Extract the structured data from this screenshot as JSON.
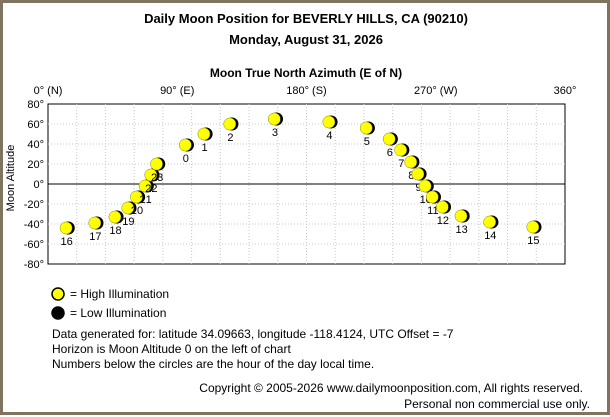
{
  "header": {
    "title": "Daily Moon Position for BEVERLY HILLS, CA (90210)",
    "date": "Monday, August 31, 2026"
  },
  "chart_data": {
    "type": "scatter",
    "title": "Daily Moon Position for BEVERLY HILLS, CA (90210)",
    "subtitle": "Monday, August 31, 2026",
    "xlabel": "Moon True North Azimuth (E of N)",
    "ylabel": "Moon Altitude",
    "xlim": [
      0,
      360
    ],
    "ylim": [
      -80,
      80
    ],
    "x_ticks": [
      {
        "value": 0,
        "label": "0° (N)"
      },
      {
        "value": 90,
        "label": "90° (E)"
      },
      {
        "value": 180,
        "label": "180° (S)"
      },
      {
        "value": 270,
        "label": "270° (W)"
      },
      {
        "value": 360,
        "label": "360°"
      }
    ],
    "y_ticks": [
      {
        "value": 80,
        "label": "80°"
      },
      {
        "value": 60,
        "label": "60°"
      },
      {
        "value": 40,
        "label": "40°"
      },
      {
        "value": 20,
        "label": "20°"
      },
      {
        "value": 0,
        "label": "0°"
      },
      {
        "value": -20,
        "label": "-20°"
      },
      {
        "value": -40,
        "label": "-40°"
      },
      {
        "value": -60,
        "label": "-60°"
      },
      {
        "value": -80,
        "label": "-80°"
      }
    ],
    "grid": true,
    "horizon_line": 0,
    "points": [
      {
        "hour": "0",
        "azimuth": 96,
        "altitude": 39
      },
      {
        "hour": "1",
        "azimuth": 109,
        "altitude": 50
      },
      {
        "hour": "2",
        "azimuth": 127,
        "altitude": 60
      },
      {
        "hour": "3",
        "azimuth": 158,
        "altitude": 65
      },
      {
        "hour": "4",
        "azimuth": 196,
        "altitude": 62
      },
      {
        "hour": "5",
        "azimuth": 222,
        "altitude": 56
      },
      {
        "hour": "6",
        "azimuth": 238,
        "altitude": 45
      },
      {
        "hour": "7",
        "azimuth": 246,
        "altitude": 34
      },
      {
        "hour": "8",
        "azimuth": 253,
        "altitude": 22
      },
      {
        "hour": "9",
        "azimuth": 258,
        "altitude": 10
      },
      {
        "hour": "10",
        "azimuth": 263,
        "altitude": -2
      },
      {
        "hour": "11",
        "azimuth": 268,
        "altitude": -13
      },
      {
        "hour": "12",
        "azimuth": 275,
        "altitude": -23
      },
      {
        "hour": "13",
        "azimuth": 288,
        "altitude": -32
      },
      {
        "hour": "14",
        "azimuth": 308,
        "altitude": -38
      },
      {
        "hour": "15",
        "azimuth": 338,
        "altitude": -43
      },
      {
        "hour": "16",
        "azimuth": 13,
        "altitude": -44
      },
      {
        "hour": "17",
        "azimuth": 33,
        "altitude": -39
      },
      {
        "hour": "18",
        "azimuth": 47,
        "altitude": -33
      },
      {
        "hour": "19",
        "azimuth": 56,
        "altitude": -24
      },
      {
        "hour": "20",
        "azimuth": 62,
        "altitude": -13
      },
      {
        "hour": "21",
        "azimuth": 68,
        "altitude": -2
      },
      {
        "hour": "22",
        "azimuth": 72,
        "altitude": 9
      },
      {
        "hour": "23",
        "azimuth": 76,
        "altitude": 20
      }
    ],
    "marker_color": "#ffff00",
    "shadow_color": "#000000",
    "legend": [
      {
        "label": "= High Illumination",
        "color": "#ffff00"
      },
      {
        "label": "= Low Illumination",
        "color": "#000000"
      }
    ],
    "legend_position": "bottom-left"
  },
  "notes": {
    "line1": "Data generated for: latitude 34.09663, longitude -118.4124, UTC Offset = -7",
    "line2": "Horizon is Moon Altitude 0 on the left of chart",
    "line3": "Numbers below the circles are the hour of the day local time."
  },
  "footer": {
    "copyright": "Copyright © 2005-2026 www.dailymoonposition.com, All rights reserved.",
    "usage": "Personal non commercial use only."
  }
}
